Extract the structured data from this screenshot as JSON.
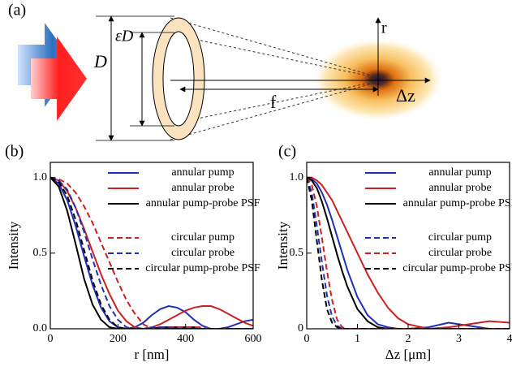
{
  "diagram": {
    "panel_label": "(a)",
    "outer_diameter": "D",
    "inner_diameter": "εD",
    "focal_length": "f",
    "radial_axis": "r",
    "axial_axis": "Δz"
  },
  "chart_data": [
    {
      "type": "line",
      "panel_label": "(b)",
      "x_label": "r [nm]",
      "y_label": "Intensity",
      "xlim": [
        0,
        600
      ],
      "xticks": [
        0,
        200,
        400,
        600
      ],
      "ylim": [
        0,
        1.1
      ],
      "yticks": [
        {
          "value": 0,
          "label": "0.0"
        },
        {
          "value": 0.5,
          "label": "0.5"
        },
        {
          "value": 1,
          "label": "1.0"
        }
      ],
      "legend": "upper right",
      "x": [
        0,
        25,
        50,
        75,
        100,
        125,
        150,
        175,
        200,
        225,
        250,
        275,
        300,
        325,
        350,
        375,
        400,
        425,
        450,
        475,
        500,
        525,
        550,
        575,
        600
      ],
      "series": [
        {
          "name": "annular pump",
          "color": "#1f2fb8",
          "style": "solid",
          "values": [
            1,
            0.96,
            0.85,
            0.68,
            0.48,
            0.29,
            0.14,
            0.05,
            0.01,
            0,
            0.01,
            0.04,
            0.09,
            0.13,
            0.15,
            0.14,
            0.11,
            0.06,
            0.02,
            0,
            0,
            0.01,
            0.03,
            0.05,
            0.06
          ]
        },
        {
          "name": "annular probe",
          "color": "#cc2020",
          "style": "solid",
          "values": [
            1,
            0.98,
            0.91,
            0.8,
            0.66,
            0.51,
            0.36,
            0.23,
            0.12,
            0.05,
            0.01,
            0,
            0.01,
            0.03,
            0.06,
            0.09,
            0.12,
            0.14,
            0.15,
            0.15,
            0.13,
            0.1,
            0.07,
            0.04,
            0.02
          ]
        },
        {
          "name": "annular pump-probe PSF",
          "color": "#000000",
          "style": "solid",
          "values": [
            1,
            0.94,
            0.78,
            0.56,
            0.33,
            0.16,
            0.06,
            0.01,
            0,
            0,
            0,
            0,
            0,
            0.01,
            0.01,
            0.01,
            0.01,
            0.01,
            0,
            0,
            0,
            0,
            0,
            0,
            0
          ]
        },
        {
          "name": "circular pump",
          "color": "#cc2020",
          "style": "dashed",
          "values": [
            1,
            0.99,
            0.96,
            0.9,
            0.81,
            0.7,
            0.57,
            0.44,
            0.31,
            0.19,
            0.1,
            0.03,
            0,
            0,
            0.01,
            0.01,
            0.01,
            0.01,
            0.01,
            0,
            0,
            0,
            0,
            0,
            0
          ]
        },
        {
          "name": "circular probe",
          "color": "#1f2fb8",
          "style": "dashed",
          "values": [
            1,
            0.98,
            0.92,
            0.8,
            0.64,
            0.46,
            0.29,
            0.15,
            0.06,
            0.01,
            0,
            0,
            0.01,
            0.01,
            0.01,
            0,
            0,
            0,
            0,
            0,
            0,
            0,
            0,
            0,
            0
          ]
        },
        {
          "name": "circular pump-probe PSF",
          "color": "#000000",
          "style": "dashed",
          "values": [
            1,
            0.97,
            0.88,
            0.72,
            0.52,
            0.32,
            0.16,
            0.06,
            0.01,
            0,
            0,
            0,
            0,
            0,
            0,
            0,
            0,
            0,
            0,
            0,
            0,
            0,
            0,
            0,
            0
          ]
        }
      ]
    },
    {
      "type": "line",
      "panel_label": "(c)",
      "x_label": "Δz [μm]",
      "y_label": "Intensity",
      "xlim": [
        0,
        4
      ],
      "xticks": [
        0,
        1,
        2,
        3,
        4
      ],
      "ylim": [
        0,
        1.1
      ],
      "yticks": [
        {
          "value": 0,
          "label": "0"
        },
        {
          "value": 0.5,
          "label": "0.5"
        },
        {
          "value": 1,
          "label": "1.0"
        }
      ],
      "legend": "upper right",
      "x": [
        0,
        0.1,
        0.2,
        0.3,
        0.4,
        0.5,
        0.6,
        0.7,
        0.8,
        1.0,
        1.2,
        1.4,
        1.6,
        1.8,
        2.0,
        2.4,
        2.8,
        3.2,
        3.6,
        4.0
      ],
      "series": [
        {
          "name": "annular pump",
          "color": "#1f2fb8",
          "style": "solid",
          "values": [
            1,
            0.99,
            0.96,
            0.9,
            0.82,
            0.72,
            0.61,
            0.5,
            0.39,
            0.21,
            0.09,
            0.03,
            0.01,
            0,
            0,
            0.01,
            0.04,
            0.02,
            0,
            0
          ]
        },
        {
          "name": "annular probe",
          "color": "#cc2020",
          "style": "solid",
          "values": [
            1,
            1,
            0.98,
            0.95,
            0.9,
            0.85,
            0.78,
            0.71,
            0.64,
            0.5,
            0.36,
            0.24,
            0.14,
            0.07,
            0.03,
            0,
            0.01,
            0.03,
            0.05,
            0.04
          ]
        },
        {
          "name": "annular pump-probe PSF",
          "color": "#000000",
          "style": "solid",
          "values": [
            1,
            0.98,
            0.93,
            0.84,
            0.73,
            0.61,
            0.49,
            0.38,
            0.28,
            0.13,
            0.05,
            0.01,
            0,
            0,
            0,
            0,
            0,
            0,
            0,
            0
          ]
        },
        {
          "name": "circular pump",
          "color": "#1f2fb8",
          "style": "dashed",
          "values": [
            1,
            0.9,
            0.68,
            0.44,
            0.22,
            0.08,
            0.02,
            0,
            0,
            0,
            0,
            0,
            0,
            0,
            0,
            0,
            0,
            0,
            0,
            0
          ]
        },
        {
          "name": "circular probe",
          "color": "#cc2020",
          "style": "dashed",
          "values": [
            1,
            0.95,
            0.81,
            0.6,
            0.38,
            0.19,
            0.06,
            0.01,
            0,
            0,
            0,
            0,
            0,
            0,
            0,
            0,
            0,
            0,
            0,
            0
          ]
        },
        {
          "name": "circular pump-probe PSF",
          "color": "#000000",
          "style": "dashed",
          "values": [
            1,
            0.85,
            0.58,
            0.32,
            0.13,
            0.04,
            0.01,
            0,
            0,
            0,
            0,
            0,
            0,
            0,
            0,
            0,
            0,
            0,
            0,
            0
          ]
        }
      ]
    }
  ]
}
